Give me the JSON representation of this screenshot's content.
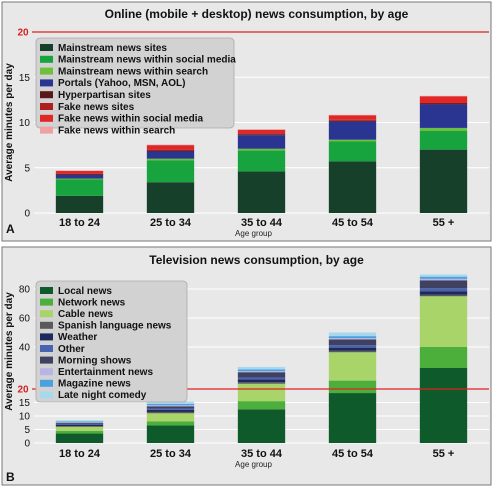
{
  "chart_data": [
    {
      "type": "bar",
      "stacked": true,
      "panel": "A",
      "title": "Online (mobile + desktop) news consumption, by age",
      "xlabel": "Age group",
      "ylabel": "Average minutes per day",
      "ylim": [
        0,
        20
      ],
      "yticks": [
        0,
        5,
        10,
        15,
        20
      ],
      "reference_line": {
        "value": 20,
        "label": "20",
        "color": "#e02020"
      },
      "grid": true,
      "legend_position": "top-left",
      "categories": [
        "18 to 24",
        "25 to 34",
        "35 to 44",
        "45 to 54",
        "55 +"
      ],
      "series": [
        {
          "name": "Mainstream news sites",
          "color": "#17402a",
          "values": [
            1.9,
            3.4,
            4.6,
            5.7,
            7.0
          ]
        },
        {
          "name": "Mainstream news within social media",
          "color": "#17a33d",
          "values": [
            1.8,
            2.4,
            2.3,
            2.2,
            2.1
          ]
        },
        {
          "name": "Mainstream news within search",
          "color": "#6fbf3e",
          "values": [
            0.1,
            0.2,
            0.2,
            0.2,
            0.3
          ]
        },
        {
          "name": "Portals (Yahoo, MSN, AOL)",
          "color": "#2a3592",
          "values": [
            0.4,
            0.8,
            1.5,
            2.0,
            2.6
          ]
        },
        {
          "name": "Hyperpartisan sites",
          "color": "#5a1717",
          "values": [
            0.1,
            0.1,
            0.1,
            0.1,
            0.1
          ]
        },
        {
          "name": "Fake news sites",
          "color": "#b01d1d",
          "values": [
            0.05,
            0.1,
            0.1,
            0.1,
            0.1
          ]
        },
        {
          "name": "Fake news within social media",
          "color": "#e02626",
          "values": [
            0.3,
            0.5,
            0.4,
            0.5,
            0.7
          ]
        },
        {
          "name": "Fake news within search",
          "color": "#f0a0a0",
          "values": [
            0.05,
            0.05,
            0.05,
            0.05,
            0.05
          ]
        }
      ]
    },
    {
      "type": "bar",
      "stacked": true,
      "panel": "B",
      "title": "Television news consumption, by age",
      "xlabel": "Age group",
      "ylabel": "Average minutes per day",
      "ylim": [
        0,
        90
      ],
      "yticks": [
        0,
        5,
        10,
        15,
        20,
        40,
        60,
        80
      ],
      "reference_line": {
        "value": 20,
        "label": "20",
        "color": "#e02020"
      },
      "grid": true,
      "legend_position": "top-left",
      "categories": [
        "18 to 24",
        "25 to 34",
        "35 to 44",
        "45 to 54",
        "55 +"
      ],
      "series": [
        {
          "name": "Local news",
          "color": "#0f5a2a",
          "values": [
            3.5,
            6.5,
            12.5,
            18.5,
            30.0
          ]
        },
        {
          "name": "Network news",
          "color": "#4caf3c",
          "values": [
            1.0,
            1.5,
            3.0,
            5.5,
            10.0
          ]
        },
        {
          "name": "Cable news",
          "color": "#a8d46a",
          "values": [
            1.5,
            3.0,
            7.0,
            13.5,
            35.0
          ]
        },
        {
          "name": "Spanish language news",
          "color": "#5a5a5a",
          "values": [
            0.3,
            0.5,
            0.7,
            0.8,
            1.0
          ]
        },
        {
          "name": "Weather",
          "color": "#1d2a5c",
          "values": [
            0.5,
            0.8,
            1.3,
            1.4,
            2.5
          ]
        },
        {
          "name": "Other",
          "color": "#4a63b0",
          "values": [
            0.3,
            0.5,
            1.0,
            1.5,
            2.0
          ]
        },
        {
          "name": "Morning shows",
          "color": "#404060",
          "values": [
            0.4,
            0.8,
            2.5,
            4.0,
            5.5
          ]
        },
        {
          "name": "Entertainment news",
          "color": "#b7b5e4",
          "values": [
            0.2,
            0.4,
            0.5,
            1.0,
            1.0
          ]
        },
        {
          "name": "Magazine news",
          "color": "#4aa1e0",
          "values": [
            0.3,
            0.5,
            0.8,
            1.3,
            1.5
          ]
        },
        {
          "name": "Late night comedy",
          "color": "#a8d8ee",
          "values": [
            0.4,
            0.8,
            1.2,
            2.5,
            3.0
          ]
        }
      ]
    }
  ]
}
